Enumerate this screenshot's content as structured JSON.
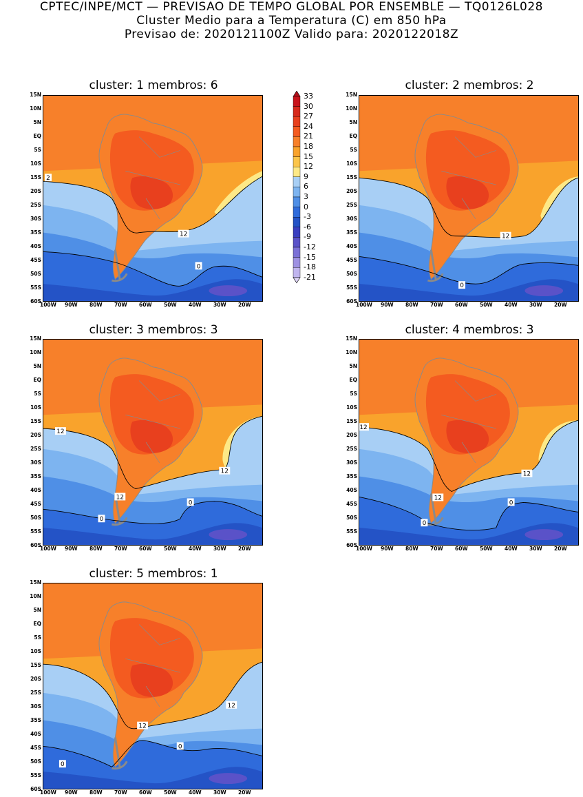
{
  "header": {
    "line1": "CPTEC/INPE/MCT — PREVISAO DE TEMPO GLOBAL POR ENSEMBLE — TQ0126L028",
    "line2": "Cluster Medio para a Temperatura (C) em 850 hPa",
    "line3": "Previsao de: 2020121100Z   Valido para: 2020122018Z"
  },
  "axes": {
    "lat_labels": [
      "15N",
      "10N",
      "5N",
      "EQ",
      "5S",
      "10S",
      "15S",
      "20S",
      "25S",
      "30S",
      "35S",
      "40S",
      "45S",
      "50S",
      "55S",
      "60S"
    ],
    "lon_labels": [
      "100W",
      "90W",
      "80W",
      "70W",
      "60W",
      "50W",
      "40W",
      "30W",
      "20W"
    ]
  },
  "legend": {
    "levels": [
      "33",
      "30",
      "27",
      "24",
      "21",
      "18",
      "15",
      "12",
      "9",
      "6",
      "3",
      "0",
      "-3",
      "-6",
      "-9",
      "-12",
      "-15",
      "-18",
      "-21"
    ],
    "colors": [
      "#b0101a",
      "#c8141c",
      "#d72a1c",
      "#e8401e",
      "#f45b20",
      "#f7802a",
      "#f9a32c",
      "#fbc54a",
      "#fde987",
      "#a8cff5",
      "#7db4f0",
      "#4f8fe6",
      "#2f6bdb",
      "#2453c6",
      "#3a3fc0",
      "#5a52c8",
      "#7b70d6",
      "#9e91e2",
      "#c0b5ee",
      "#ddd4f6"
    ]
  },
  "panels": [
    {
      "title": "cluster: 1   membros: 6",
      "contour_labels": [
        "2",
        "12",
        "0"
      ]
    },
    {
      "title": "cluster: 2   membros: 2",
      "contour_labels": [
        "12",
        "0"
      ]
    },
    {
      "title": "cluster: 3   membros: 3",
      "contour_labels": [
        "12",
        "12",
        "12",
        "0",
        "0"
      ]
    },
    {
      "title": "cluster: 4   membros: 3",
      "contour_labels": [
        "12",
        "12",
        "12",
        "0",
        "0"
      ]
    },
    {
      "title": "cluster: 5   membros: 1",
      "contour_labels": [
        "12",
        "12",
        "0",
        "0"
      ]
    }
  ]
}
